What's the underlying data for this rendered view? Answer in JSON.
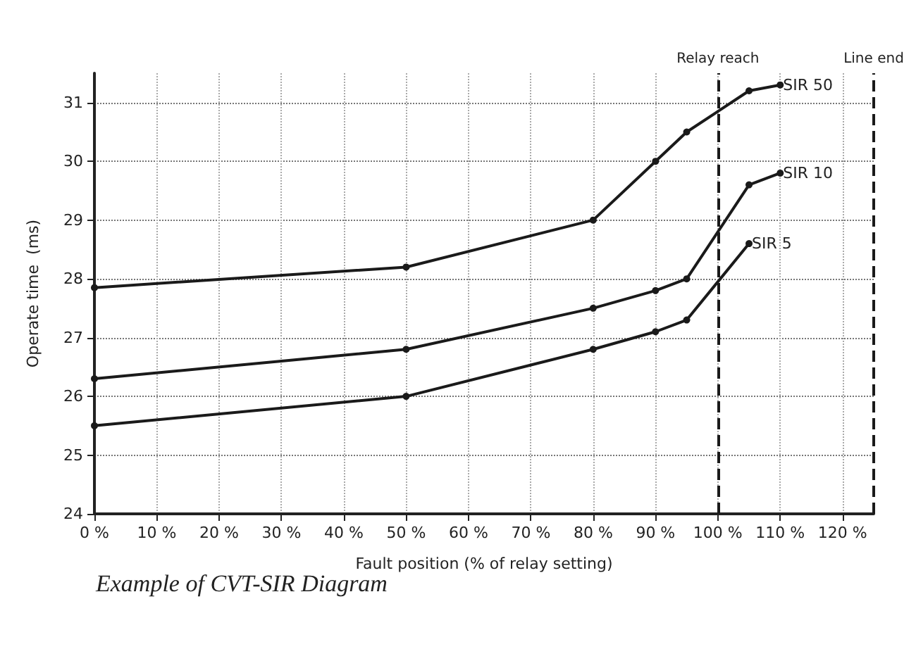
{
  "chart_data": {
    "type": "line",
    "xlabel": "Fault position (% of relay setting)",
    "ylabel": "Operate time  (ms)",
    "annotations": [
      "Example of CVT-SIR Diagram"
    ],
    "x": [
      0,
      50,
      80,
      90,
      95,
      105,
      110
    ],
    "series": [
      {
        "name": "SIR 50",
        "color": "#1a1a1a",
        "values": [
          27.85,
          28.2,
          29,
          30,
          30.5,
          31.2,
          31.3
        ]
      },
      {
        "name": "SIR 10",
        "color": "#1a1a1a",
        "values": [
          26.3,
          26.8,
          27.5,
          27.8,
          28,
          29.6,
          29.8
        ]
      },
      {
        "name": "SIR 5",
        "color": "#1a1a1a",
        "x": [
          0,
          50,
          80,
          90,
          95,
          105
        ],
        "values": [
          25.5,
          26,
          26.8,
          27.1,
          27.3,
          28.6
        ]
      }
    ],
    "xlim": [
      0,
      125
    ],
    "xticks": [
      {
        "value": 0,
        "label": "0 %"
      },
      {
        "value": 10,
        "label": "10 %"
      },
      {
        "value": 20,
        "label": "20 %"
      },
      {
        "value": 30,
        "label": "30 %"
      },
      {
        "value": 40,
        "label": "40 %"
      },
      {
        "value": 50,
        "label": "50 %"
      },
      {
        "value": 60,
        "label": "60 %"
      },
      {
        "value": 70,
        "label": "70 %"
      },
      {
        "value": 80,
        "label": "80 %"
      },
      {
        "value": 90,
        "label": "90 %"
      },
      {
        "value": 100,
        "label": "100 %"
      },
      {
        "value": 110,
        "label": "110 %"
      },
      {
        "value": 120,
        "label": "120 %"
      }
    ],
    "ylim": [
      24,
      31.5
    ],
    "yticks": [
      24,
      25,
      26,
      27,
      28,
      29,
      30,
      31
    ],
    "ref_lines": [
      {
        "axis": "x",
        "value": 100,
        "label": "Relay reach",
        "color": "#1a1a1a",
        "line_style": "dashed"
      },
      {
        "axis": "x",
        "value": 125,
        "label": "Line end",
        "color": "#1a1a1a",
        "line_style": "dashed"
      }
    ],
    "grid": true,
    "marker": "circle",
    "line_style": "solid",
    "legend": false
  }
}
